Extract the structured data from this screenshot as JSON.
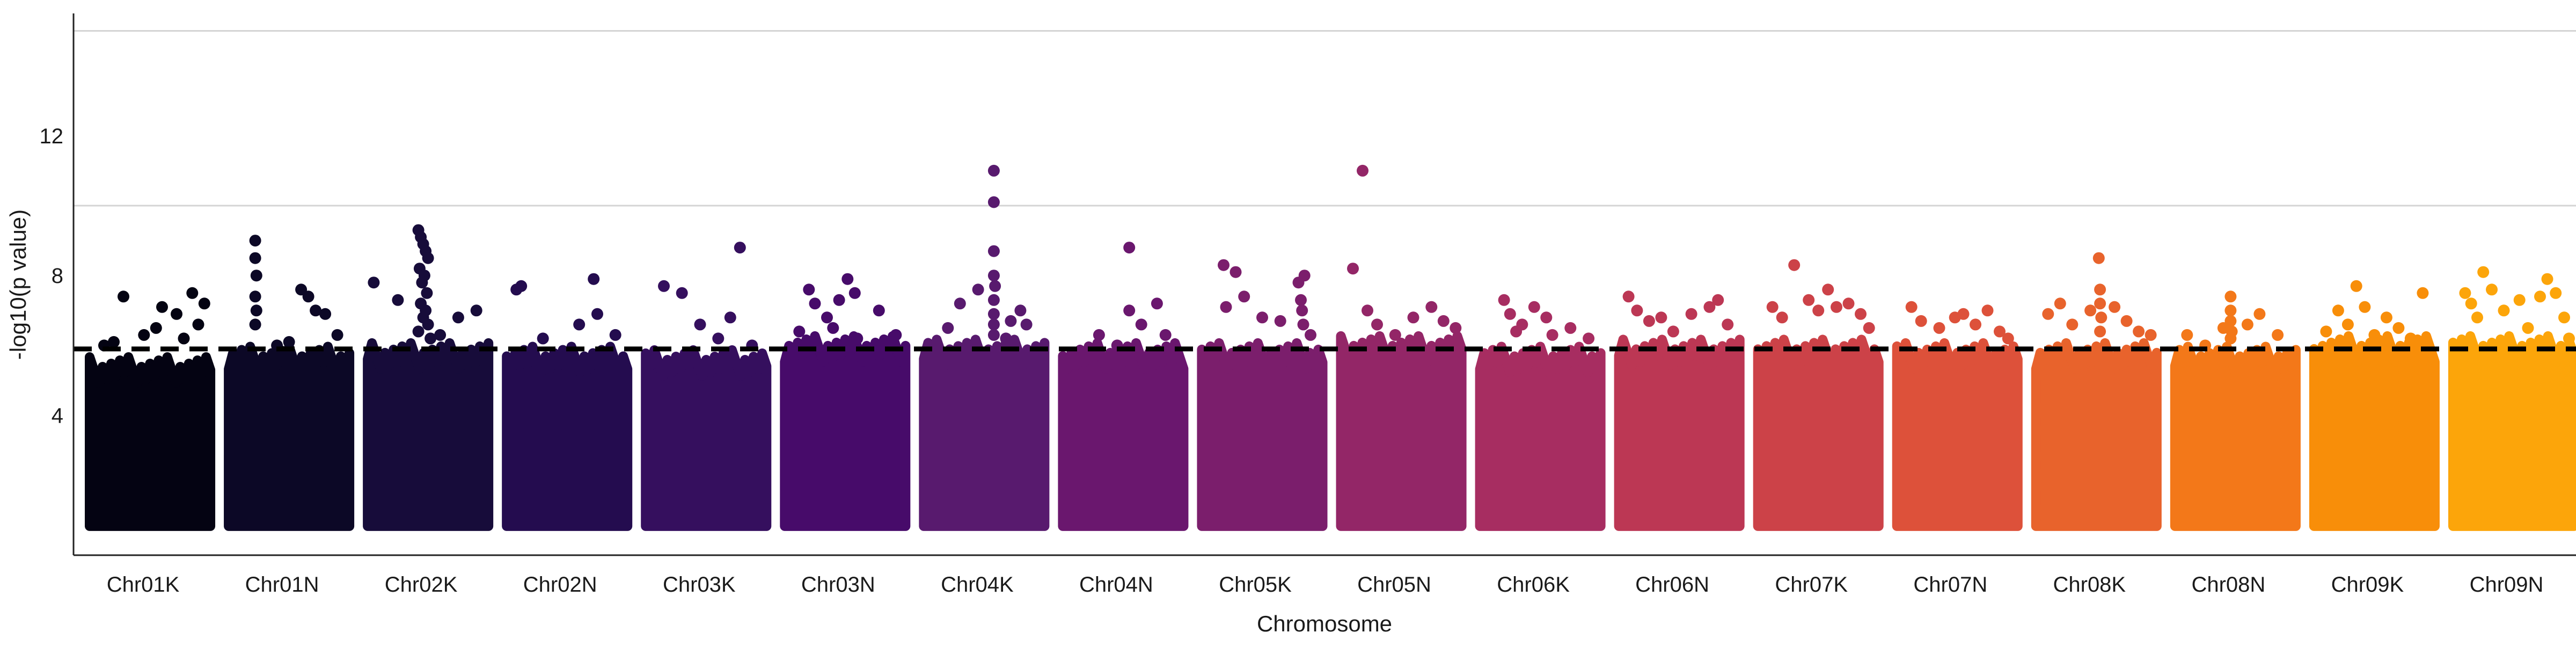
{
  "chart_data": {
    "type": "scatter",
    "subtype": "manhattan",
    "title": "",
    "xlabel": "Chromosome",
    "ylabel": "-log10(p value)",
    "ylim": [
      0,
      15.5
    ],
    "yticks": [
      4,
      8,
      12
    ],
    "y_gridlines": [
      10,
      15
    ],
    "significance_threshold": 5.9,
    "threshold_style": "dashed",
    "grid": "horizontal",
    "legend": "none",
    "point_floor": 1.0,
    "categories": [
      "Chr01K",
      "Chr01N",
      "Chr02K",
      "Chr02N",
      "Chr03K",
      "Chr03N",
      "Chr04K",
      "Chr04N",
      "Chr05K",
      "Chr05N",
      "Chr06K",
      "Chr06N",
      "Chr07K",
      "Chr07N",
      "Chr08K",
      "Chr08N",
      "Chr09K",
      "Chr09N"
    ],
    "colors": [
      "#040312",
      "#0c0826",
      "#170c3a",
      "#240c4f",
      "#350f5e",
      "#470b6a",
      "#581a6e",
      "#6a176e",
      "#7b1e6c",
      "#932667",
      "#a72d61",
      "#bc3754",
      "#cc4248",
      "#dd513a",
      "#e8632c",
      "#f37819",
      "#f88e09",
      "#fca50a"
    ],
    "bulk_top": [
      5.3,
      5.6,
      5.7,
      5.6,
      5.5,
      5.9,
      5.8,
      5.7,
      5.7,
      5.9,
      5.6,
      5.8,
      5.8,
      5.7,
      5.7,
      5.6,
      5.9,
      5.9
    ],
    "series": [
      {
        "name": "Chr01K",
        "points": [
          [
            0.12,
            6.0
          ],
          [
            0.28,
            7.4
          ],
          [
            0.45,
            6.3
          ],
          [
            0.6,
            7.1
          ],
          [
            0.72,
            6.9
          ],
          [
            0.85,
            7.5
          ],
          [
            0.9,
            6.6
          ],
          [
            0.2,
            6.1
          ],
          [
            0.55,
            6.5
          ],
          [
            0.78,
            6.2
          ],
          [
            0.95,
            7.2
          ]
        ]
      },
      {
        "name": "Chr01N",
        "points": [
          [
            0.22,
            9.0
          ],
          [
            0.22,
            8.5
          ],
          [
            0.23,
            8.0
          ],
          [
            0.22,
            7.4
          ],
          [
            0.23,
            7.0
          ],
          [
            0.22,
            6.6
          ],
          [
            0.6,
            7.6
          ],
          [
            0.66,
            7.4
          ],
          [
            0.72,
            7.0
          ],
          [
            0.8,
            6.9
          ],
          [
            0.5,
            6.1
          ],
          [
            0.9,
            6.3
          ],
          [
            0.4,
            6.0
          ]
        ]
      },
      {
        "name": "Chr02K",
        "points": [
          [
            0.05,
            7.8
          ],
          [
            0.25,
            7.3
          ],
          [
            0.42,
            9.3
          ],
          [
            0.44,
            9.1
          ],
          [
            0.46,
            8.9
          ],
          [
            0.48,
            8.7
          ],
          [
            0.5,
            8.5
          ],
          [
            0.43,
            8.2
          ],
          [
            0.47,
            8.0
          ],
          [
            0.45,
            7.8
          ],
          [
            0.49,
            7.5
          ],
          [
            0.44,
            7.2
          ],
          [
            0.48,
            7.0
          ],
          [
            0.46,
            6.8
          ],
          [
            0.5,
            6.6
          ],
          [
            0.42,
            6.4
          ],
          [
            0.52,
            6.2
          ],
          [
            0.9,
            7.0
          ],
          [
            0.75,
            6.8
          ],
          [
            0.6,
            6.3
          ]
        ]
      },
      {
        "name": "Chr02N",
        "points": [
          [
            0.08,
            7.6
          ],
          [
            0.12,
            7.7
          ],
          [
            0.72,
            7.9
          ],
          [
            0.6,
            6.6
          ],
          [
            0.75,
            6.9
          ],
          [
            0.3,
            6.2
          ],
          [
            0.9,
            6.3
          ]
        ]
      },
      {
        "name": "Chr03K",
        "points": [
          [
            0.15,
            7.7
          ],
          [
            0.3,
            7.5
          ],
          [
            0.78,
            8.8
          ],
          [
            0.45,
            6.6
          ],
          [
            0.6,
            6.2
          ],
          [
            0.7,
            6.8
          ],
          [
            0.88,
            6.0
          ]
        ]
      },
      {
        "name": "Chr03N",
        "points": [
          [
            0.2,
            7.6
          ],
          [
            0.25,
            7.2
          ],
          [
            0.35,
            6.8
          ],
          [
            0.45,
            7.3
          ],
          [
            0.52,
            7.9
          ],
          [
            0.58,
            7.5
          ],
          [
            0.4,
            6.5
          ],
          [
            0.78,
            7.0
          ],
          [
            0.92,
            6.3
          ],
          [
            0.12,
            6.4
          ],
          [
            0.6,
            6.2
          ]
        ]
      },
      {
        "name": "Chr04K",
        "points": [
          [
            0.3,
            7.2
          ],
          [
            0.45,
            7.6
          ],
          [
            0.58,
            11.0
          ],
          [
            0.58,
            10.1
          ],
          [
            0.58,
            8.7
          ],
          [
            0.58,
            8.0
          ],
          [
            0.59,
            7.7
          ],
          [
            0.58,
            7.3
          ],
          [
            0.58,
            6.9
          ],
          [
            0.58,
            6.6
          ],
          [
            0.58,
            6.3
          ],
          [
            0.72,
            6.7
          ],
          [
            0.8,
            7.0
          ],
          [
            0.85,
            6.6
          ],
          [
            0.2,
            6.5
          ],
          [
            0.68,
            6.2
          ]
        ]
      },
      {
        "name": "Chr04N",
        "points": [
          [
            0.55,
            8.8
          ],
          [
            0.55,
            7.0
          ],
          [
            0.78,
            7.2
          ],
          [
            0.3,
            6.3
          ],
          [
            0.65,
            6.6
          ],
          [
            0.85,
            6.3
          ],
          [
            0.45,
            6.0
          ]
        ]
      },
      {
        "name": "Chr05K",
        "points": [
          [
            0.18,
            8.3
          ],
          [
            0.28,
            8.1
          ],
          [
            0.2,
            7.1
          ],
          [
            0.35,
            7.4
          ],
          [
            0.5,
            6.8
          ],
          [
            0.65,
            6.7
          ],
          [
            0.8,
            7.8
          ],
          [
            0.85,
            8.0
          ],
          [
            0.82,
            7.3
          ],
          [
            0.83,
            7.0
          ],
          [
            0.84,
            6.6
          ],
          [
            0.9,
            6.3
          ]
        ]
      },
      {
        "name": "Chr05N",
        "points": [
          [
            0.1,
            8.2
          ],
          [
            0.18,
            11.0
          ],
          [
            0.22,
            7.0
          ],
          [
            0.3,
            6.6
          ],
          [
            0.45,
            6.3
          ],
          [
            0.6,
            6.8
          ],
          [
            0.75,
            7.1
          ],
          [
            0.85,
            6.7
          ],
          [
            0.95,
            6.5
          ]
        ]
      },
      {
        "name": "Chr06K",
        "points": [
          [
            0.2,
            7.3
          ],
          [
            0.25,
            6.9
          ],
          [
            0.35,
            6.6
          ],
          [
            0.45,
            7.1
          ],
          [
            0.55,
            6.8
          ],
          [
            0.6,
            6.3
          ],
          [
            0.75,
            6.5
          ],
          [
            0.9,
            6.2
          ],
          [
            0.3,
            6.4
          ]
        ]
      },
      {
        "name": "Chr06N",
        "points": [
          [
            0.08,
            7.4
          ],
          [
            0.15,
            7.0
          ],
          [
            0.25,
            6.7
          ],
          [
            0.35,
            6.8
          ],
          [
            0.45,
            6.4
          ],
          [
            0.6,
            6.9
          ],
          [
            0.75,
            7.1
          ],
          [
            0.82,
            7.3
          ],
          [
            0.9,
            6.6
          ]
        ]
      },
      {
        "name": "Chr07K",
        "points": [
          [
            0.12,
            7.1
          ],
          [
            0.2,
            6.8
          ],
          [
            0.3,
            8.3
          ],
          [
            0.42,
            7.3
          ],
          [
            0.5,
            7.0
          ],
          [
            0.58,
            7.6
          ],
          [
            0.65,
            7.1
          ],
          [
            0.75,
            7.2
          ],
          [
            0.85,
            6.9
          ],
          [
            0.92,
            6.5
          ]
        ]
      },
      {
        "name": "Chr07N",
        "points": [
          [
            0.12,
            7.1
          ],
          [
            0.2,
            6.7
          ],
          [
            0.35,
            6.5
          ],
          [
            0.48,
            6.8
          ],
          [
            0.55,
            6.9
          ],
          [
            0.65,
            6.6
          ],
          [
            0.75,
            7.0
          ],
          [
            0.85,
            6.4
          ],
          [
            0.92,
            6.2
          ]
        ]
      },
      {
        "name": "Chr08K",
        "points": [
          [
            0.1,
            6.9
          ],
          [
            0.2,
            7.2
          ],
          [
            0.3,
            6.6
          ],
          [
            0.45,
            7.0
          ],
          [
            0.52,
            8.5
          ],
          [
            0.53,
            7.6
          ],
          [
            0.53,
            7.2
          ],
          [
            0.54,
            6.8
          ],
          [
            0.53,
            6.4
          ],
          [
            0.65,
            7.1
          ],
          [
            0.75,
            6.7
          ],
          [
            0.85,
            6.4
          ],
          [
            0.95,
            6.3
          ]
        ]
      },
      {
        "name": "Chr08N",
        "points": [
          [
            0.1,
            6.3
          ],
          [
            0.25,
            6.0
          ],
          [
            0.4,
            6.5
          ],
          [
            0.46,
            7.4
          ],
          [
            0.46,
            7.0
          ],
          [
            0.46,
            6.7
          ],
          [
            0.47,
            6.4
          ],
          [
            0.46,
            6.2
          ],
          [
            0.6,
            6.6
          ],
          [
            0.7,
            6.9
          ],
          [
            0.85,
            6.3
          ]
        ]
      },
      {
        "name": "Chr09K",
        "points": [
          [
            0.1,
            6.4
          ],
          [
            0.2,
            7.0
          ],
          [
            0.28,
            6.6
          ],
          [
            0.35,
            7.7
          ],
          [
            0.42,
            7.1
          ],
          [
            0.5,
            6.3
          ],
          [
            0.6,
            6.8
          ],
          [
            0.7,
            6.5
          ],
          [
            0.8,
            6.2
          ],
          [
            0.9,
            7.5
          ]
        ]
      },
      {
        "name": "Chr09N",
        "points": [
          [
            0.1,
            7.5
          ],
          [
            0.15,
            7.2
          ],
          [
            0.2,
            6.8
          ],
          [
            0.25,
            8.1
          ],
          [
            0.32,
            7.6
          ],
          [
            0.42,
            7.0
          ],
          [
            0.55,
            7.3
          ],
          [
            0.62,
            6.5
          ],
          [
            0.72,
            7.4
          ],
          [
            0.78,
            7.9
          ],
          [
            0.85,
            7.5
          ],
          [
            0.92,
            6.8
          ],
          [
            0.96,
            6.2
          ]
        ]
      }
    ]
  }
}
